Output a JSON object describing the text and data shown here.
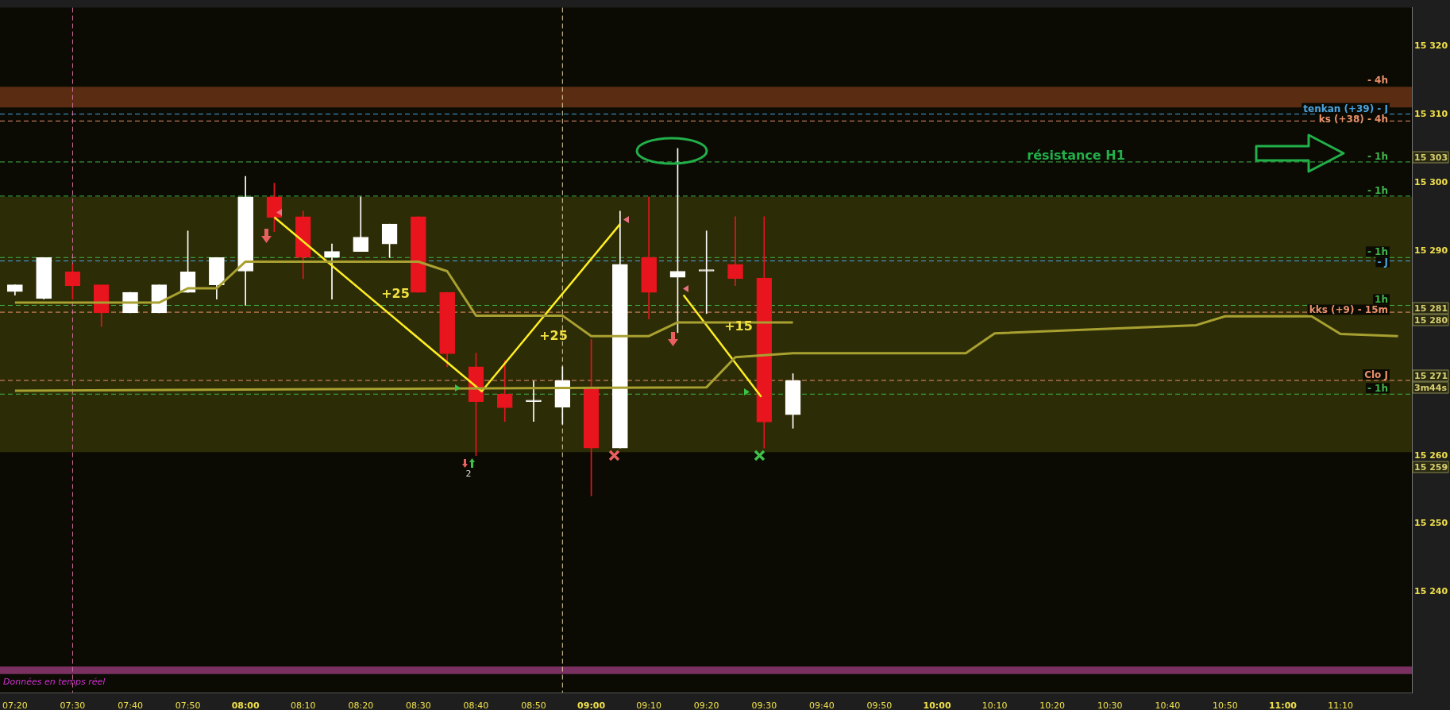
{
  "chart_data": {
    "type": "candlestick",
    "x": [
      7.3333,
      7.4167,
      7.5,
      7.5833,
      7.6667,
      7.75,
      7.8333,
      7.9167,
      8,
      8.0833,
      8.1667,
      8.25,
      8.3333,
      8.4167,
      8.5,
      8.5833,
      8.6667,
      8.75,
      8.8333,
      8.9167,
      9,
      9.0833,
      9.1667,
      9.25,
      9.3333,
      9.4167,
      9.5,
      9.5833
    ],
    "ohlc": [
      [
        15284,
        15285,
        15283.5,
        15285
      ],
      [
        15283,
        15289,
        15282.9,
        15289
      ],
      [
        15286.9,
        15288,
        15282.9,
        15284.9
      ],
      [
        15285,
        15285,
        15278.9,
        15280.9
      ],
      [
        15280.9,
        15283.9,
        15280.9,
        15283.9
      ],
      [
        15280.9,
        15285,
        15280.9,
        15285
      ],
      [
        15283.9,
        15292.9,
        15283.9,
        15286.9
      ],
      [
        15285,
        15289,
        15282.9,
        15289
      ],
      [
        15287,
        15300.9,
        15282,
        15297.9
      ],
      [
        15297.9,
        15299.9,
        15292.8,
        15294.9
      ],
      [
        15295,
        15295.8,
        15285.9,
        15289
      ],
      [
        15289,
        15291,
        15282.9,
        15289.9
      ],
      [
        15289.9,
        15297.9,
        15289.9,
        15292
      ],
      [
        15291,
        15293.9,
        15289,
        15293.9
      ],
      [
        15295,
        15295,
        15283.9,
        15283.9
      ],
      [
        15283.9,
        15283.9,
        15273,
        15274.9
      ],
      [
        15273,
        15275,
        15260,
        15267.9
      ],
      [
        15269,
        15273.9,
        15265,
        15267
      ],
      [
        15267.9,
        15270.9,
        15265,
        15267.9
      ],
      [
        15267.1,
        15273,
        15264.6,
        15271
      ],
      [
        15270,
        15277,
        15254.1,
        15261.1
      ],
      [
        15261.1,
        15295.8,
        15261.1,
        15288
      ],
      [
        15289,
        15297.9,
        15280,
        15283.9
      ],
      [
        15286.1,
        15305,
        15278,
        15287
      ],
      [
        15287,
        15292.9,
        15280.8,
        15287
      ],
      [
        15288,
        15295,
        15284.9,
        15285.9
      ],
      [
        15286,
        15295,
        15261.1,
        15264.9
      ],
      [
        15266,
        15272,
        15264,
        15271
      ]
    ],
    "colors": [
      "#ffffff",
      "#ffffff",
      "#e8141e",
      "#e8141e",
      "#ffffff",
      "#ffffff",
      "#ffffff",
      "#ffffff",
      "#ffffff",
      "#e8141e",
      "#e8141e",
      "#ffffff",
      "#ffffff",
      "#ffffff",
      "#e8141e",
      "#e8141e",
      "#e8141e",
      "#e8141e",
      "#ffffff",
      "#ffffff",
      "#e8141e",
      "#ffffff",
      "#e8141e",
      "#ffffff",
      "#ffffff",
      "#e8141e",
      "#e8141e",
      "#ffffff"
    ],
    "series": [
      {
        "type": "line",
        "color": "#a8a030",
        "x": [
          7.3333,
          7.4167,
          7.5,
          7.5833,
          7.6667,
          7.75,
          7.8333,
          7.9167,
          8,
          8.0833,
          8.1667,
          8.25,
          8.3333,
          8.4167,
          8.5,
          8.5833,
          8.6667,
          8.75,
          8.8333,
          8.9167,
          9,
          9.0833,
          9.1667,
          9.25,
          9.3333,
          9.4167,
          9.5,
          9.5833
        ],
        "values": [
          15282.4,
          15282.4,
          15282.4,
          15282.4,
          15282.4,
          15282.4,
          15284.5,
          15284.5,
          15288.4,
          15288.4,
          15288.4,
          15288.4,
          15288.4,
          15288.4,
          15288.4,
          15287,
          15280.5,
          15280.5,
          15280.5,
          15280.5,
          15277.5,
          15277.5,
          15277.5,
          15279.5,
          15279.5,
          15279.5,
          15279.5,
          15279.5
        ]
      },
      {
        "type": "line",
        "color": "#a8a030",
        "x": [
          7.3333,
          9.3333,
          9.4167,
          9.5833,
          10.0833,
          10.1667,
          10.75,
          10.8333,
          11.0833,
          11.1667,
          11.3333
        ],
        "values": [
          15269.5,
          15270,
          15274.4,
          15275,
          15275,
          15277.9,
          15279.1,
          15280.4,
          15280.4,
          15277.8,
          15277.5
        ]
      },
      {
        "type": "line",
        "color": "#ffee22",
        "x": [
          8.0833,
          8.6833,
          9.0833
        ],
        "values": [
          15294.9,
          15269.4,
          15293.9
        ]
      },
      {
        "type": "line",
        "color": "#ffee22",
        "x": [
          9.2667,
          9.4917
        ],
        "values": [
          15283.5,
          15268.6
        ]
      }
    ],
    "xlim": [
      7.29,
      11.3733
    ],
    "xticks": [
      {
        "value": 7.3333,
        "label": "07:20"
      },
      {
        "value": 7.5,
        "label": "07:30"
      },
      {
        "value": 7.6667,
        "label": "07:40"
      },
      {
        "value": 7.8333,
        "label": "07:50"
      },
      {
        "value": 8,
        "label": "08:00"
      },
      {
        "value": 8.1667,
        "label": "08:10"
      },
      {
        "value": 8.3333,
        "label": "08:20"
      },
      {
        "value": 8.5,
        "label": "08:30"
      },
      {
        "value": 8.6667,
        "label": "08:40"
      },
      {
        "value": 8.8333,
        "label": "08:50"
      },
      {
        "value": 9,
        "label": "09:00"
      },
      {
        "value": 9.1667,
        "label": "09:10"
      },
      {
        "value": 9.3333,
        "label": "09:20"
      },
      {
        "value": 9.5,
        "label": "09:30"
      },
      {
        "value": 9.6667,
        "label": "09:40"
      },
      {
        "value": 9.8333,
        "label": "09:50"
      },
      {
        "value": 10,
        "label": "10:00"
      },
      {
        "value": 10.1667,
        "label": "10:10"
      },
      {
        "value": 10.3333,
        "label": "10:20"
      },
      {
        "value": 10.5,
        "label": "10:30"
      },
      {
        "value": 10.6667,
        "label": "10:40"
      },
      {
        "value": 10.8333,
        "label": "10:50"
      },
      {
        "value": 11,
        "label": "11:00"
      },
      {
        "value": 11.1667,
        "label": "11:10"
      }
    ],
    "ylim": [
      15225.3,
      15325.6
    ],
    "yticks": [
      {
        "value": 15240,
        "label": "15 240"
      },
      {
        "value": 15250,
        "label": "15 250"
      },
      {
        "value": 15260,
        "label": "15 260"
      },
      {
        "value": 15290,
        "label": "15 290"
      },
      {
        "value": 15300,
        "label": "15 300"
      },
      {
        "value": 15310,
        "label": "15 310"
      },
      {
        "value": 15320,
        "label": "15 320"
      }
    ],
    "bands": [
      {
        "axis": "y",
        "from": 15260.5,
        "to": 15297.9,
        "color": "#2c2c06"
      },
      {
        "axis": "y",
        "from": 15311,
        "to": 15314,
        "label": "- 4h",
        "color": "#5a2c12"
      },
      {
        "axis": "y",
        "from": 15228,
        "to": 15229.1,
        "color": "#7a3060"
      }
    ],
    "ref_lines": [
      {
        "axis": "y",
        "value": 15310,
        "label": "tenkan (+39) - J",
        "color": "#4aa3df",
        "line_style": "dashed"
      },
      {
        "axis": "y",
        "value": 15309,
        "label": "ks (+38) - 4h",
        "color": "#e8906a",
        "line_style": "dashed"
      },
      {
        "axis": "y",
        "value": 15303,
        "label": "- 1h",
        "color": "#3fb54a",
        "line_style": "dashed"
      },
      {
        "axis": "y",
        "value": 15298,
        "label": "- 1h",
        "color": "#3fb54a",
        "line_style": "dashed"
      },
      {
        "axis": "y",
        "value": 15289,
        "label": "- 1h",
        "color": "#3fb54a",
        "line_style": "dashed"
      },
      {
        "axis": "y",
        "value": 15288.5,
        "label": "- J",
        "color": "#4aa3df",
        "line_style": "dashed"
      },
      {
        "axis": "y",
        "value": 15282,
        "label": "1h",
        "color": "#3fb54a",
        "line_style": "dashed"
      },
      {
        "axis": "y",
        "value": 15281,
        "label": "kks (+9) - 15m",
        "color": "#e8906a",
        "line_style": "dashed"
      },
      {
        "axis": "y",
        "value": 15271,
        "label": "Clo J",
        "color": "#e8906a",
        "line_style": "dashed"
      },
      {
        "axis": "y",
        "value": 15269,
        "label": "- 1h",
        "color": "#3fb54a",
        "line_style": "dashed"
      },
      {
        "axis": "x",
        "value": 7.5,
        "color": "#d070a0",
        "line_style": "dashed"
      },
      {
        "axis": "x",
        "value": 8.9167,
        "color": "#e0d0a0",
        "line_style": "dashed"
      }
    ],
    "annotations": [
      "+25",
      "+25",
      "+15",
      "2",
      "résistance H1",
      "15 303",
      "15 281",
      "15 280",
      "15 271",
      "3m44s",
      "15 259",
      "Données en temps réel"
    ],
    "grid": false,
    "legend": false
  }
}
